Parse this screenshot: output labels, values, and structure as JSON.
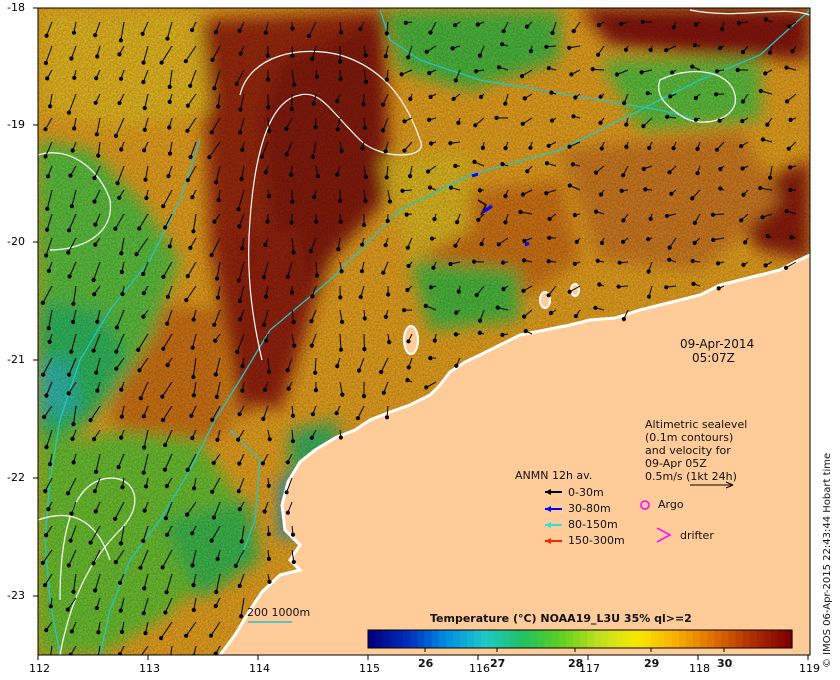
{
  "map": {
    "date": "09-Apr-2014",
    "time": "05:07Z",
    "credit": "© IMOS 06-Apr-2015 22:43:44 Hobart time",
    "lon_ticks": [
      "112",
      "113",
      "114",
      "115",
      "116",
      "117",
      "118",
      "119"
    ],
    "lat_ticks": [
      "-18",
      "-19",
      "-20",
      "-21",
      "-22",
      "-23"
    ]
  },
  "annotation": {
    "line1": "Altimetric sealevel",
    "line2": "(0.1m contours)",
    "line3": "and velocity for",
    "line4": "09-Apr 05Z",
    "line5": "0.5m/s (1kt 24h)"
  },
  "legend": {
    "title": "ANMN 12h av.",
    "d1": "0-30m",
    "d2": "30-80m",
    "d3": "80-150m",
    "d4": "150-300m",
    "argo": "Argo",
    "drifter": "drifter",
    "isobath": "200  1000m",
    "colors": {
      "d1": "#000000",
      "d2": "#0000ff",
      "d3": "#33dddd",
      "d4": "#ff2200",
      "argo": "#ff00ff",
      "isobath": "#22c7c7"
    }
  },
  "colorbar": {
    "title": "Temperature (°C) NOAA19_L3U 35% ql>=2",
    "ticks": [
      "26",
      "27",
      "28",
      "29",
      "30"
    ],
    "colors": [
      "#000080",
      "#0030c0",
      "#0090e0",
      "#20c8c8",
      "#20c060",
      "#60d020",
      "#c0e020",
      "#f8e800",
      "#f8b000",
      "#e07000",
      "#b03000",
      "#800000"
    ]
  },
  "colors": {
    "land": "#ffcc99",
    "coast": "#ffffff",
    "contour": "#ffffff"
  }
}
